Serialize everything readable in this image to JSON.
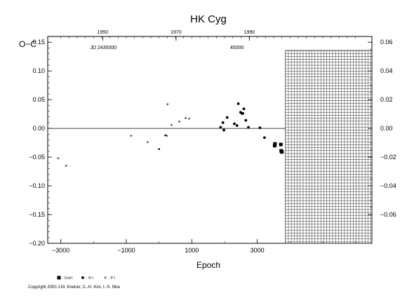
{
  "chart_data": {
    "type": "scatter",
    "title": "HK  Cyg",
    "ylabel": "O−C",
    "xlabel": "Epoch",
    "xlim": [
      -3400,
      6500
    ],
    "ylim": [
      -0.2,
      0.16
    ],
    "y_ticks": [
      "0.15",
      "0.10",
      "0.05",
      "0.00",
      "−0.05",
      "−0.10",
      "−0.15",
      "−0.20"
    ],
    "y_tick_values": [
      0.15,
      0.1,
      0.05,
      0.0,
      -0.05,
      -0.1,
      -0.15,
      -0.2
    ],
    "x_ticks": [
      "−3000",
      "−1000",
      "1000",
      "3000"
    ],
    "x_tick_values": [
      -3000,
      -1000,
      1000,
      3000
    ],
    "top_axis": {
      "year_labels": [
        "1950",
        "1970",
        "1990"
      ],
      "year_label_epochs": [
        -1720,
        520,
        2760
      ],
      "jd_label": "JD 2435000",
      "jd_label_epoch": -1700,
      "jd2_label": "45000",
      "jd2_label_epoch": 2380
    },
    "right_axis": {
      "ticks": [
        "0.06",
        "0.04",
        "0.02",
        "0.00",
        "−0.02",
        "−0.04",
        "−0.06"
      ],
      "tick_values": [
        0.06,
        0.04,
        0.02,
        0.0,
        -0.02,
        -0.04,
        -0.06
      ],
      "ylim": [
        -0.06,
        0.06
      ]
    },
    "future_region_start_epoch": 3860,
    "grid": false,
    "series": [
      {
        "name": ": Ccd I",
        "marker": "square",
        "points": [
          {
            "x": 3530,
            "y": -0.03
          },
          {
            "x": 3540,
            "y": -0.027
          },
          {
            "x": 3720,
            "y": -0.028
          },
          {
            "x": 3730,
            "y": -0.039
          },
          {
            "x": 3750,
            "y": -0.041
          }
        ]
      },
      {
        "name": ": Vi I",
        "marker": "circle",
        "points": [
          {
            "x": 1880,
            "y": 0.002
          },
          {
            "x": 1950,
            "y": 0.01
          },
          {
            "x": 1980,
            "y": -0.003
          },
          {
            "x": 2080,
            "y": 0.019
          },
          {
            "x": 2300,
            "y": 0.008
          },
          {
            "x": 2380,
            "y": 0.005
          },
          {
            "x": 2420,
            "y": 0.043
          },
          {
            "x": 2490,
            "y": 0.028
          },
          {
            "x": 2530,
            "y": 0.026
          },
          {
            "x": 2560,
            "y": 0.026
          },
          {
            "x": 2590,
            "y": 0.034
          },
          {
            "x": 2650,
            "y": 0.014
          },
          {
            "x": 2730,
            "y": 0.002
          },
          {
            "x": 3080,
            "y": 0.001
          },
          {
            "x": 3220,
            "y": -0.016
          }
        ]
      },
      {
        "name": ": P I",
        "marker": "plus",
        "points": [
          {
            "x": -3080,
            "y": -0.052
          },
          {
            "x": -2840,
            "y": -0.065
          },
          {
            "x": -850,
            "y": -0.013
          },
          {
            "x": -350,
            "y": -0.024
          },
          {
            "x": 240,
            "y": -0.013
          },
          {
            "x": 260,
            "y": 0.042
          },
          {
            "x": 380,
            "y": 0.006
          },
          {
            "x": 620,
            "y": 0.012
          },
          {
            "x": 810,
            "y": 0.018
          },
          {
            "x": 920,
            "y": 0.017
          }
        ]
      },
      {
        "name": "",
        "marker": "small-circle",
        "points": [
          {
            "x": 1,
            "y": -0.036
          },
          {
            "x": 190,
            "y": -0.012
          }
        ]
      }
    ],
    "legend_placement": "bottom-left"
  },
  "copyright": "Copyright 2000 J.M. Kreiner, C.-H. Kim, I.-S. Nha"
}
